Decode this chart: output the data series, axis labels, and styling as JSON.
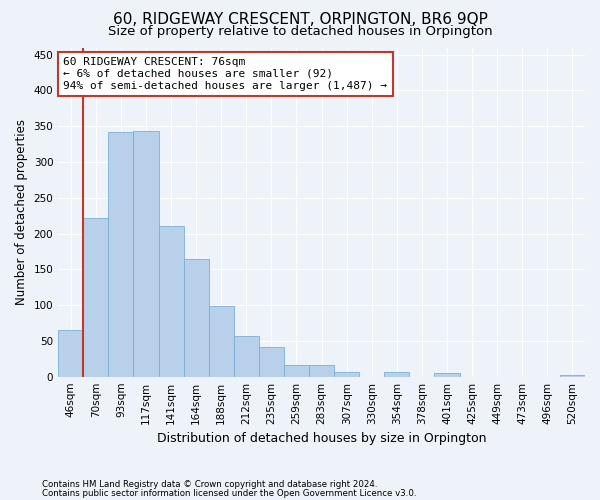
{
  "title": "60, RIDGEWAY CRESCENT, ORPINGTON, BR6 9QP",
  "subtitle": "Size of property relative to detached houses in Orpington",
  "xlabel": "Distribution of detached houses by size in Orpington",
  "ylabel": "Number of detached properties",
  "categories": [
    "46sqm",
    "70sqm",
    "93sqm",
    "117sqm",
    "141sqm",
    "164sqm",
    "188sqm",
    "212sqm",
    "235sqm",
    "259sqm",
    "283sqm",
    "307sqm",
    "330sqm",
    "354sqm",
    "378sqm",
    "401sqm",
    "425sqm",
    "449sqm",
    "473sqm",
    "496sqm",
    "520sqm"
  ],
  "values": [
    65,
    222,
    342,
    344,
    210,
    165,
    99,
    57,
    41,
    17,
    17,
    6,
    0,
    7,
    0,
    5,
    0,
    0,
    0,
    0,
    2
  ],
  "bar_color": "#b8d0ea",
  "bar_edge_color": "#7aafd4",
  "vline_color": "#c0392b",
  "annotation_text": "60 RIDGEWAY CRESCENT: 76sqm\n← 6% of detached houses are smaller (92)\n94% of semi-detached houses are larger (1,487) →",
  "annotation_box_color": "#ffffff",
  "annotation_box_edge": "#c0392b",
  "ylim": [
    0,
    460
  ],
  "yticks": [
    0,
    50,
    100,
    150,
    200,
    250,
    300,
    350,
    400,
    450
  ],
  "footer_line1": "Contains HM Land Registry data © Crown copyright and database right 2024.",
  "footer_line2": "Contains public sector information licensed under the Open Government Licence v3.0.",
  "bg_color": "#eef2f9",
  "grid_color": "#ffffff",
  "title_fontsize": 11,
  "subtitle_fontsize": 9.5,
  "tick_fontsize": 7.5,
  "ylabel_fontsize": 8.5,
  "xlabel_fontsize": 9
}
